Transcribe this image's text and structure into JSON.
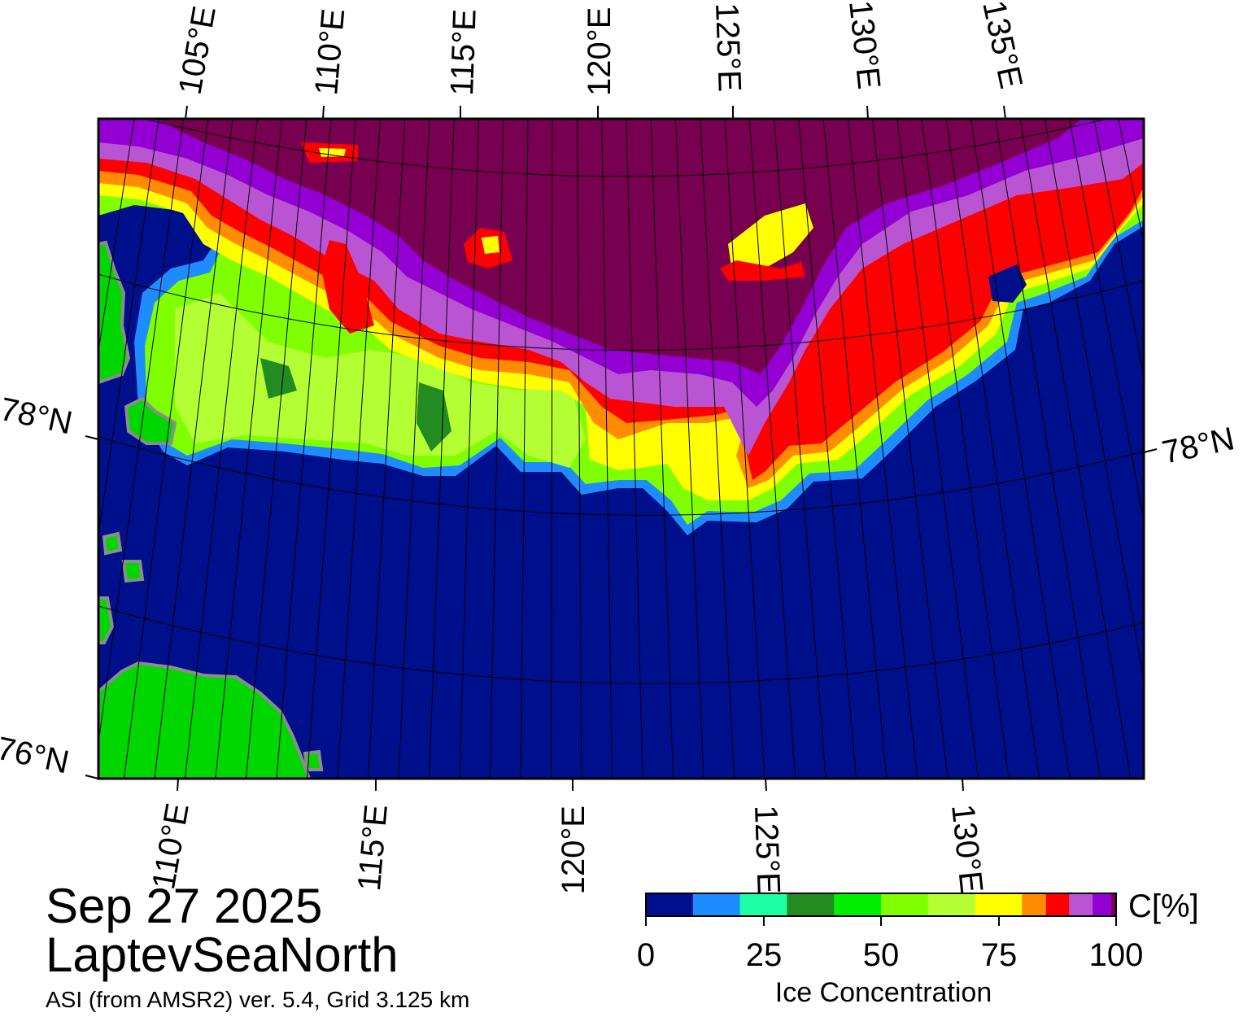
{
  "title": {
    "date": "Sep 27 2025",
    "region": "LaptevSeaNorth",
    "subtitle": "ASI (from AMSR2) ver. 5.4,  Grid 3.125 km"
  },
  "map": {
    "top_lon_labels": [
      "105°E",
      "110°E",
      "115°E",
      "120°E",
      "125°E",
      "130°E",
      "135°E"
    ],
    "bottom_lon_labels": [
      "110°E",
      "115°E",
      "120°E",
      "125°E",
      "130°E"
    ],
    "lat_labels": [
      "78°N",
      "76°N",
      "78°N"
    ],
    "legend_colors": {
      "water": "#000f8c",
      "land": "#00d700",
      "coast_mask": "#8c8c8c"
    }
  },
  "colorbar": {
    "unit": "C[%]",
    "label": "Ice Concentration",
    "ticks": [
      "0",
      "25",
      "50",
      "75",
      "100"
    ],
    "tick_values": [
      0,
      25,
      50,
      75,
      100
    ],
    "colors": [
      "#000f8c",
      "#1e8cff",
      "#1effa5",
      "#228b22",
      "#00ee00",
      "#7fff00",
      "#b3ff33",
      "#ffff00",
      "#ff8c00",
      "#ff0000",
      "#b955d3",
      "#9400d3",
      "#780050"
    ]
  }
}
